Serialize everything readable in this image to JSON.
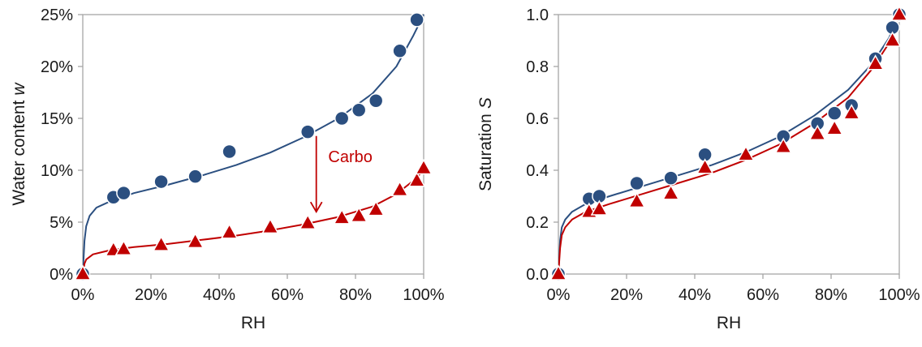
{
  "colors": {
    "blue": "#2b4f80",
    "red": "#c00000",
    "axis": "#a6a6a6",
    "text": "#1a1a1a"
  },
  "chart_data": [
    {
      "type": "scatter",
      "xlabel": "RH",
      "ylabel": "Water content",
      "ylabel_var": "w",
      "xlim": [
        0,
        100
      ],
      "ylim": [
        0,
        25
      ],
      "x_ticks": [
        "0%",
        "20%",
        "40%",
        "60%",
        "80%",
        "100%"
      ],
      "y_ticks": [
        "0%",
        "5%",
        "10%",
        "15%",
        "20%",
        "25%"
      ],
      "grid": false,
      "series": [
        {
          "marker": "circle",
          "color": "#2b4f80",
          "points": [
            [
              0,
              0
            ],
            [
              9,
              7.4
            ],
            [
              12,
              7.8
            ],
            [
              23,
              8.9
            ],
            [
              33,
              9.4
            ],
            [
              43,
              11.8
            ],
            [
              66,
              13.7
            ],
            [
              76,
              15.0
            ],
            [
              81,
              15.8
            ],
            [
              86,
              16.7
            ],
            [
              93,
              21.5
            ],
            [
              98,
              24.5
            ]
          ],
          "fit": [
            [
              0,
              0
            ],
            [
              0.5,
              3.2
            ],
            [
              1,
              4.6
            ],
            [
              2,
              5.6
            ],
            [
              4,
              6.4
            ],
            [
              8,
              7.0
            ],
            [
              15,
              7.8
            ],
            [
              25,
              8.6
            ],
            [
              35,
              9.5
            ],
            [
              45,
              10.5
            ],
            [
              55,
              11.7
            ],
            [
              65,
              13.2
            ],
            [
              75,
              15.0
            ],
            [
              85,
              17.4
            ],
            [
              92,
              20.0
            ],
            [
              97,
              23.0
            ],
            [
              100,
              25.0
            ]
          ]
        },
        {
          "marker": "triangle",
          "color": "#c00000",
          "points": [
            [
              0,
              0
            ],
            [
              9,
              2.3
            ],
            [
              12,
              2.4
            ],
            [
              23,
              2.8
            ],
            [
              33,
              3.1
            ],
            [
              43,
              4.0
            ],
            [
              55,
              4.5
            ],
            [
              66,
              4.9
            ],
            [
              76,
              5.4
            ],
            [
              81,
              5.6
            ],
            [
              86,
              6.2
            ],
            [
              93,
              8.1
            ],
            [
              98,
              9.0
            ],
            [
              100,
              10.2
            ]
          ],
          "fit": [
            [
              0,
              0
            ],
            [
              0.5,
              1.0
            ],
            [
              1,
              1.4
            ],
            [
              3,
              1.9
            ],
            [
              8,
              2.3
            ],
            [
              15,
              2.6
            ],
            [
              25,
              2.9
            ],
            [
              35,
              3.3
            ],
            [
              45,
              3.7
            ],
            [
              55,
              4.2
            ],
            [
              65,
              4.8
            ],
            [
              75,
              5.5
            ],
            [
              85,
              6.5
            ],
            [
              92,
              7.7
            ],
            [
              97,
              9.0
            ],
            [
              100,
              10.0
            ]
          ]
        }
      ],
      "annotation": {
        "text": "Carbo",
        "arrow_from": [
          68.5,
          13.3
        ],
        "arrow_to": [
          68.5,
          6.0
        ],
        "text_at": [
          72,
          10.8
        ]
      }
    },
    {
      "type": "scatter",
      "xlabel": "RH",
      "ylabel": "Saturation",
      "ylabel_var": "S",
      "xlim": [
        0,
        100
      ],
      "ylim": [
        0,
        1
      ],
      "x_ticks": [
        "0%",
        "20%",
        "40%",
        "60%",
        "80%",
        "100%"
      ],
      "y_ticks": [
        "0.0",
        "0.2",
        "0.4",
        "0.6",
        "0.8",
        "1.0"
      ],
      "grid": false,
      "series": [
        {
          "marker": "circle",
          "color": "#2b4f80",
          "points": [
            [
              0,
              0
            ],
            [
              9,
              0.29
            ],
            [
              12,
              0.3
            ],
            [
              23,
              0.35
            ],
            [
              33,
              0.37
            ],
            [
              43,
              0.46
            ],
            [
              66,
              0.53
            ],
            [
              76,
              0.58
            ],
            [
              81,
              0.62
            ],
            [
              86,
              0.65
            ],
            [
              93,
              0.83
            ],
            [
              98,
              0.95
            ],
            [
              100,
              1.0
            ]
          ],
          "fit": [
            [
              0,
              0
            ],
            [
              0.5,
              0.13
            ],
            [
              1,
              0.18
            ],
            [
              2,
              0.21
            ],
            [
              4,
              0.24
            ],
            [
              8,
              0.27
            ],
            [
              15,
              0.3
            ],
            [
              25,
              0.34
            ],
            [
              35,
              0.38
            ],
            [
              45,
              0.42
            ],
            [
              55,
              0.47
            ],
            [
              65,
              0.53
            ],
            [
              75,
              0.61
            ],
            [
              85,
              0.71
            ],
            [
              92,
              0.81
            ],
            [
              97,
              0.91
            ],
            [
              100,
              1.0
            ]
          ]
        },
        {
          "marker": "triangle",
          "color": "#c00000",
          "points": [
            [
              0,
              0
            ],
            [
              9,
              0.24
            ],
            [
              12,
              0.25
            ],
            [
              23,
              0.28
            ],
            [
              33,
              0.31
            ],
            [
              43,
              0.41
            ],
            [
              55,
              0.46
            ],
            [
              66,
              0.49
            ],
            [
              76,
              0.54
            ],
            [
              81,
              0.56
            ],
            [
              86,
              0.62
            ],
            [
              93,
              0.81
            ],
            [
              98,
              0.9
            ],
            [
              100,
              1.0
            ]
          ],
          "fit": [
            [
              0,
              0
            ],
            [
              0.5,
              0.1
            ],
            [
              1,
              0.15
            ],
            [
              2,
              0.18
            ],
            [
              4,
              0.21
            ],
            [
              8,
              0.24
            ],
            [
              15,
              0.27
            ],
            [
              25,
              0.31
            ],
            [
              35,
              0.35
            ],
            [
              45,
              0.39
            ],
            [
              55,
              0.44
            ],
            [
              65,
              0.5
            ],
            [
              75,
              0.58
            ],
            [
              85,
              0.68
            ],
            [
              92,
              0.79
            ],
            [
              97,
              0.89
            ],
            [
              100,
              1.0
            ]
          ]
        }
      ]
    }
  ]
}
